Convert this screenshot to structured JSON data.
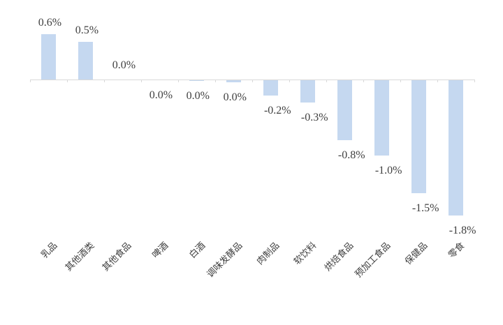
{
  "chart_data": {
    "type": "bar",
    "title": "",
    "xlabel": "",
    "ylabel": "",
    "categories": [
      "乳品",
      "其他酒类",
      "其他食品",
      "啤酒",
      "白酒",
      "调味发酵品",
      "肉制品",
      "软饮料",
      "烘焙食品",
      "预加工食品",
      "保健品",
      "零食"
    ],
    "values": [
      0.6,
      0.5,
      0.0,
      0.0,
      -0.01,
      -0.03,
      -0.2,
      -0.3,
      -0.8,
      -1.0,
      -1.5,
      -1.8
    ],
    "labels": [
      "0.6%",
      "0.5%",
      "0.0%",
      "0.0%",
      "0.0%",
      "0.0%",
      "-0.2%",
      "-0.3%",
      "-0.8%",
      "-1.0%",
      "-1.5%",
      "-1.8%"
    ],
    "label_side": [
      "above",
      "above",
      "above",
      "below",
      "below",
      "below",
      "below",
      "below",
      "below",
      "below",
      "below",
      "below"
    ],
    "unit": "%",
    "grid": false,
    "legend": false,
    "x_tick_rotation_deg": 45,
    "colors": {
      "bar_fill": "#c5d8f0",
      "axis_line": "#d9d9d9",
      "value_label_text": "#3f3f3f",
      "category_label_text": "#404040",
      "background": "#ffffff"
    }
  }
}
